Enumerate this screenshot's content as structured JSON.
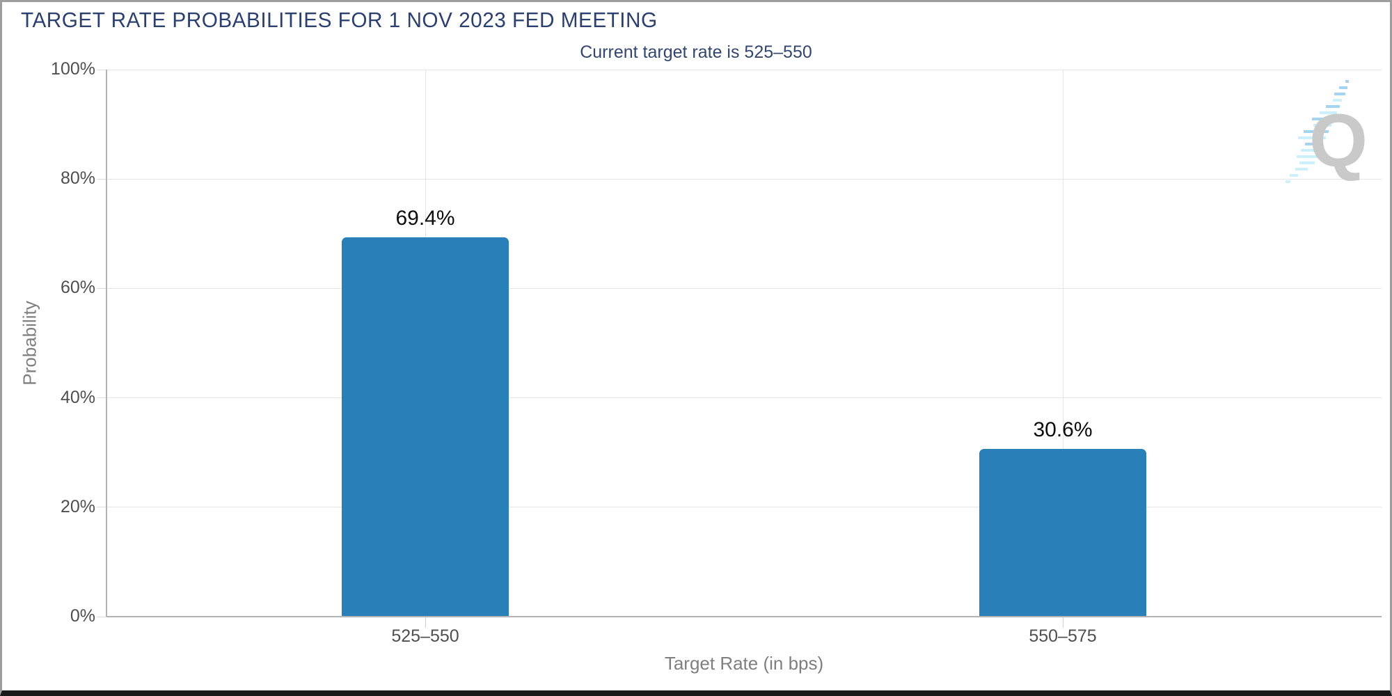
{
  "chart_data": {
    "type": "bar",
    "title": "TARGET RATE PROBABILITIES FOR 1 NOV 2023 FED MEETING",
    "subtitle": "Current target rate is 525–550",
    "categories": [
      "525–550",
      "550–575"
    ],
    "values": [
      69.4,
      30.6
    ],
    "value_labels": [
      "69.4%",
      "30.6%"
    ],
    "xlabel": "Target Rate (in bps)",
    "ylabel": "Probability",
    "ylim": [
      0,
      100
    ],
    "ytick_step": 20,
    "ytick_labels": [
      "0%",
      "20%",
      "40%",
      "60%",
      "80%",
      "100%"
    ],
    "grid": true,
    "legend": "none",
    "bar_color": "#2980b9"
  },
  "watermark": {
    "icon": "q-logo",
    "letter": "Q"
  },
  "colors": {
    "title_text": "#2c4070",
    "subtitle_text": "#32466f",
    "bar": "#2980b9",
    "tick_text": "#4f4f4f",
    "axis_title_text": "#7f7f7f",
    "gridline": "#e4e4e4",
    "axis_line": "#b3b3b3",
    "frame_border": "#9d9d9d",
    "frame_bottom": "#1a1a1a",
    "watermark_q": "#c7c7c7",
    "watermark_dash_blue": "#9fd2f0",
    "watermark_dash_cyan": "#c9effb"
  }
}
